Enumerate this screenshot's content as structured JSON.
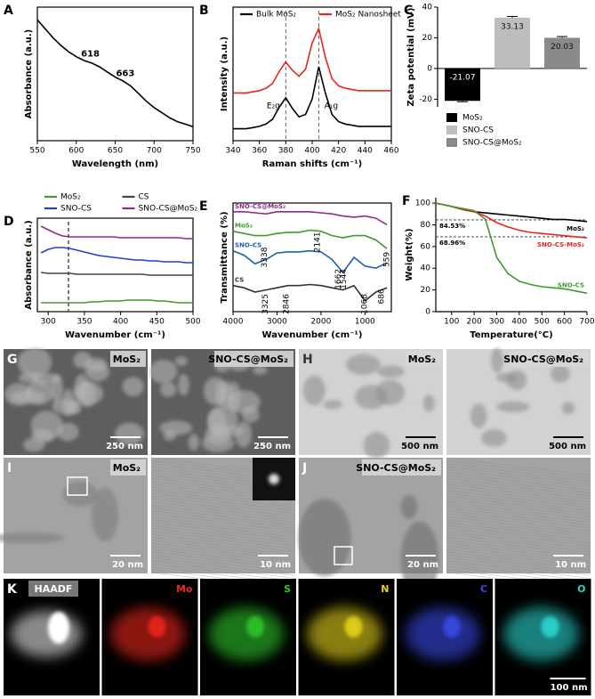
{
  "chart_data": [
    {
      "type": "line",
      "panel": "A",
      "x_label": "Wavelength (nm)",
      "y_label": "Absorbance (a.u.)",
      "x": [
        550,
        560,
        570,
        580,
        590,
        600,
        610,
        620,
        630,
        640,
        650,
        660,
        670,
        680,
        690,
        700,
        710,
        720,
        730,
        740,
        750
      ],
      "values": [
        0.95,
        0.88,
        0.81,
        0.75,
        0.7,
        0.66,
        0.63,
        0.61,
        0.58,
        0.54,
        0.5,
        0.47,
        0.43,
        0.37,
        0.31,
        0.26,
        0.22,
        0.18,
        0.15,
        0.13,
        0.11
      ],
      "color": "#000000",
      "xlim": [
        550,
        750
      ],
      "ylim": [
        0,
        1.05
      ],
      "xticks": [
        550,
        600,
        650,
        700,
        750
      ],
      "peaks": [
        618,
        663
      ]
    },
    {
      "type": "line",
      "panel": "B",
      "x_label": "Raman shifts (cm⁻¹)",
      "y_label": "Intensity (a.u.)",
      "x": [
        340,
        345,
        350,
        355,
        360,
        365,
        370,
        375,
        380,
        385,
        390,
        395,
        400,
        405,
        410,
        415,
        420,
        425,
        430,
        435,
        440,
        445,
        450,
        455,
        460
      ],
      "series": [
        {
          "name": "Bulk MoS₂",
          "color": "#000000",
          "values": [
            0.1,
            0.1,
            0.1,
            0.11,
            0.12,
            0.14,
            0.18,
            0.28,
            0.36,
            0.27,
            0.2,
            0.22,
            0.35,
            0.62,
            0.4,
            0.22,
            0.16,
            0.14,
            0.13,
            0.12,
            0.12,
            0.12,
            0.12,
            0.12,
            0.12
          ]
        },
        {
          "name": "MoS₂ Nanosheet",
          "color": "#e8261f",
          "values": [
            0.4,
            0.4,
            0.4,
            0.41,
            0.42,
            0.44,
            0.48,
            0.58,
            0.66,
            0.59,
            0.54,
            0.6,
            0.82,
            0.94,
            0.7,
            0.52,
            0.46,
            0.44,
            0.43,
            0.42,
            0.42,
            0.42,
            0.42,
            0.42,
            0.42
          ]
        }
      ],
      "xlim": [
        340,
        460
      ],
      "ylim": [
        0,
        1.12
      ],
      "xticks": [
        340,
        360,
        380,
        400,
        420,
        440,
        460
      ],
      "vlines": [
        380,
        405
      ],
      "peak_labels": [
        "E₂g",
        "A₁g"
      ],
      "legend": "inside-top"
    },
    {
      "type": "bar",
      "panel": "C",
      "y_label": "Zeta potential (mV)",
      "categories": [
        "MoS₂",
        "SNO-CS",
        "SNO-CS@MoS₂"
      ],
      "values": [
        -21.07,
        33.13,
        20.03
      ],
      "errors": [
        0.6,
        0.8,
        0.8
      ],
      "colors": [
        "#000000",
        "#bdbdbd",
        "#8a8a8a"
      ],
      "ylim": [
        -25,
        40
      ],
      "yticks": [
        -20,
        0,
        20,
        40
      ],
      "legend": "below"
    },
    {
      "type": "line",
      "panel": "D",
      "x_label": "Wavenumber (cm⁻¹)",
      "y_label": "Absorbance (a.u.)",
      "x": [
        290,
        300,
        310,
        320,
        330,
        340,
        350,
        360,
        370,
        380,
        390,
        400,
        410,
        420,
        430,
        440,
        450,
        460,
        470,
        480,
        490,
        500
      ],
      "series": [
        {
          "name": "MoS₂",
          "color": "#3e9a2c",
          "values": [
            0.1,
            0.1,
            0.1,
            0.1,
            0.1,
            0.1,
            0.1,
            0.11,
            0.11,
            0.12,
            0.12,
            0.12,
            0.13,
            0.13,
            0.13,
            0.13,
            0.12,
            0.12,
            0.11,
            0.1,
            0.1,
            0.1
          ]
        },
        {
          "name": "CS",
          "color": "#444444",
          "values": [
            0.44,
            0.43,
            0.43,
            0.43,
            0.43,
            0.42,
            0.42,
            0.42,
            0.42,
            0.42,
            0.42,
            0.42,
            0.42,
            0.42,
            0.42,
            0.41,
            0.41,
            0.41,
            0.41,
            0.41,
            0.41,
            0.41
          ]
        },
        {
          "name": "SNO-CS",
          "color": "#1f3fd8",
          "values": [
            0.66,
            0.7,
            0.72,
            0.72,
            0.71,
            0.69,
            0.67,
            0.65,
            0.63,
            0.62,
            0.61,
            0.6,
            0.59,
            0.58,
            0.58,
            0.57,
            0.57,
            0.56,
            0.56,
            0.56,
            0.55,
            0.55
          ]
        },
        {
          "name": "SNO-CS@MoS₂",
          "color": "#8e2a8e",
          "values": [
            0.96,
            0.92,
            0.88,
            0.85,
            0.84,
            0.84,
            0.84,
            0.84,
            0.84,
            0.84,
            0.84,
            0.83,
            0.83,
            0.83,
            0.83,
            0.83,
            0.83,
            0.83,
            0.83,
            0.83,
            0.82,
            0.82
          ]
        }
      ],
      "xlim": [
        285,
        500
      ],
      "ylim": [
        0,
        1.05
      ],
      "xticks": [
        300,
        350,
        400,
        450,
        500
      ],
      "vlines": [
        328
      ],
      "legend": "above"
    },
    {
      "type": "line",
      "panel": "E",
      "x_label": "Wavenumber (cm⁻¹)",
      "y_label": "Transmittance (%)",
      "x": [
        4000,
        3750,
        3500,
        3250,
        3000,
        2750,
        2500,
        2250,
        2000,
        1750,
        1500,
        1250,
        1000,
        750,
        500
      ],
      "series": [
        {
          "name": "SNO-CS@MoS₂",
          "color": "#8e2a8e",
          "values": [
            0.92,
            0.92,
            0.91,
            0.9,
            0.92,
            0.92,
            0.92,
            0.92,
            0.91,
            0.9,
            0.88,
            0.87,
            0.88,
            0.86,
            0.8
          ]
        },
        {
          "name": "MoS₂",
          "color": "#3e9a2c",
          "values": [
            0.74,
            0.72,
            0.7,
            0.7,
            0.72,
            0.73,
            0.73,
            0.75,
            0.74,
            0.7,
            0.68,
            0.7,
            0.7,
            0.66,
            0.58
          ]
        },
        {
          "name": "SNO-CS",
          "color": "#1f5fb0",
          "values": [
            0.56,
            0.52,
            0.44,
            0.48,
            0.54,
            0.55,
            0.55,
            0.56,
            0.55,
            0.48,
            0.36,
            0.5,
            0.42,
            0.4,
            0.45
          ]
        },
        {
          "name": "CS",
          "color": "#333333",
          "values": [
            0.24,
            0.22,
            0.18,
            0.2,
            0.22,
            0.24,
            0.24,
            0.25,
            0.24,
            0.22,
            0.2,
            0.24,
            0.1,
            0.18,
            0.22
          ]
        }
      ],
      "xlim": [
        4000,
        400
      ],
      "ylim": [
        0,
        1
      ],
      "xticks": [
        4000,
        3000,
        2000,
        1000
      ],
      "peaks": [
        3338,
        2141,
        1662,
        1544,
        559,
        3325,
        2846,
        1068,
        686
      ],
      "legend": "inline-start"
    },
    {
      "type": "line",
      "panel": "F",
      "x_label": "Temperature(°C)",
      "y_label": "Weight(%)",
      "x": [
        30,
        100,
        150,
        200,
        250,
        300,
        350,
        400,
        450,
        500,
        550,
        600,
        650,
        700
      ],
      "series": [
        {
          "name": "MoS₂",
          "color": "#000000",
          "values": [
            100,
            97,
            94,
            92,
            91,
            90,
            89,
            88,
            87,
            86,
            85,
            85,
            84,
            83
          ]
        },
        {
          "name": "SNO-CS-MoS₂",
          "color": "#e8261f",
          "values": [
            100,
            97,
            94,
            92,
            88,
            82,
            78,
            75,
            73,
            72,
            71,
            70,
            69,
            68
          ]
        },
        {
          "name": "SNO-CS",
          "color": "#3e9a2c",
          "values": [
            100,
            97,
            95,
            93,
            85,
            50,
            35,
            28,
            25,
            23,
            22,
            21,
            19,
            17
          ]
        }
      ],
      "xlim": [
        30,
        700
      ],
      "ylim": [
        0,
        105
      ],
      "xticks": [
        100,
        200,
        300,
        400,
        500,
        600,
        700
      ],
      "yticks": [
        0,
        20,
        40,
        60,
        80,
        100
      ],
      "hlines": [
        84.53,
        68.96
      ],
      "hline_labels": [
        "84.53%",
        "68.96%"
      ],
      "legend": "inline-end"
    }
  ],
  "micrographs": [
    {
      "panel": "G",
      "images": [
        {
          "label": "MoS₂",
          "scale": "250 nm"
        },
        {
          "label": "SNO-CS@MoS₂",
          "scale": "250 nm"
        }
      ]
    },
    {
      "panel": "H",
      "images": [
        {
          "label": "MoS₂",
          "scale": "500 nm"
        },
        {
          "label": "SNO-CS@MoS₂",
          "scale": "500 nm"
        }
      ]
    },
    {
      "panel": "I",
      "images": [
        {
          "label": "MoS₂",
          "scale": "20 nm"
        },
        {
          "scale": "10 nm"
        }
      ]
    },
    {
      "panel": "J",
      "images": [
        {
          "label": "SNO-CS@MoS₂",
          "scale": "20 nm"
        },
        {
          "scale": "10 nm"
        }
      ]
    }
  ],
  "mapping": {
    "panel": "K",
    "scale": "100 nm",
    "channels": [
      {
        "label": "HAADF",
        "color": "#ffffff"
      },
      {
        "label": "Mo",
        "color": "#e8261f"
      },
      {
        "label": "S",
        "color": "#2fc52c"
      },
      {
        "label": "N",
        "color": "#e6d21a"
      },
      {
        "label": "C",
        "color": "#3a4ae6"
      },
      {
        "label": "O",
        "color": "#29d6d0"
      }
    ]
  }
}
